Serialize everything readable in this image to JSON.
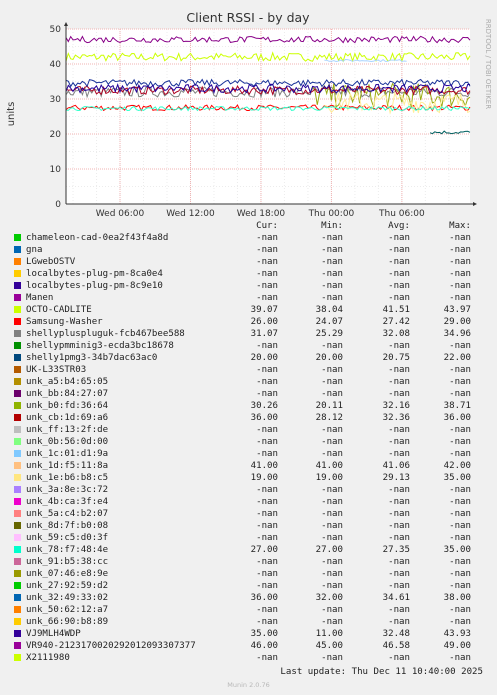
{
  "chart_data": {
    "type": "line",
    "title": "Client RSSI - by day",
    "ylabel": "units",
    "ylim": [
      0,
      50
    ],
    "yticks": [
      "0",
      "10",
      "20",
      "30",
      "40",
      "50"
    ],
    "xticks": [
      "Wed 06:00",
      "Wed 12:00",
      "Wed 18:00",
      "Thu 00:00",
      "Thu 06:00"
    ],
    "xrange_hours": [
      0,
      34.4
    ],
    "xtick_hours": [
      4.6,
      10.6,
      16.6,
      22.6,
      28.6
    ],
    "grid": true,
    "side_label": "RRDTOOL / TOBI OETIKER",
    "series": [
      {
        "name": "OCTO-CADLITE",
        "color": "#ccff00",
        "base": 42,
        "noise": 1.2,
        "start": 0,
        "end": 34.4
      },
      {
        "name": "Samsung-Washer",
        "color": "#ff0000",
        "base": 27.5,
        "noise": 0.8,
        "start": 0,
        "end": 34.4
      },
      {
        "name": "shellypluspluguk-fcb467bee588",
        "color": "#808080",
        "base": 32,
        "noise": 1.5,
        "start": 0,
        "end": 34.4
      },
      {
        "name": "shelly1pmg3-34b7dac63ac0",
        "color": "#006060",
        "base": 20.5,
        "noise": 0.5,
        "start": 31,
        "end": 34.4
      },
      {
        "name": "unk_b0:fd:36:64",
        "color": "#99aa11",
        "base": 31,
        "noise": 3.5,
        "start": 21,
        "end": 34.4
      },
      {
        "name": "unk_cb:1d:69:a6",
        "color": "#b00020",
        "base": 32.5,
        "noise": 1.2,
        "start": 0,
        "end": 34.4
      },
      {
        "name": "unk_1d:f5:11:8a",
        "color": "#aad4ff",
        "base": 41,
        "noise": 0.3,
        "start": 22,
        "end": 29
      },
      {
        "name": "unk_1e:b6:b8:c5",
        "color": "#ffee99",
        "base": 29,
        "noise": 3,
        "start": 22,
        "end": 34.4
      },
      {
        "name": "unk_78:f7:48:4e",
        "color": "#33ffcc",
        "base": 27.3,
        "noise": 0.6,
        "start": 0,
        "end": 34.4
      },
      {
        "name": "unk_32:49:33:02",
        "color": "#1a3399",
        "base": 34.6,
        "noise": 1,
        "start": 0,
        "end": 34.4
      },
      {
        "name": "VJ9MLH4WDP",
        "color": "#220099",
        "base": 33,
        "noise": 1.2,
        "start": 0,
        "end": 34.4
      },
      {
        "name": "VR940-2123170020292012093307377",
        "color": "#880088",
        "base": 47,
        "noise": 0.9,
        "start": 0,
        "end": 34.4
      }
    ]
  },
  "legend": {
    "headers": {
      "cur": "Cur:",
      "min": "Min:",
      "avg": "Avg:",
      "max": "Max:"
    },
    "rows": [
      {
        "name": "chameleon-cad-0ea2f43f4a8d",
        "color": "#00cc00",
        "cur": "-nan",
        "min": "-nan",
        "avg": "-nan",
        "max": "-nan"
      },
      {
        "name": "gna",
        "color": "#0066b3",
        "cur": "-nan",
        "min": "-nan",
        "avg": "-nan",
        "max": "-nan"
      },
      {
        "name": "LGwebOSTV",
        "color": "#ff8000",
        "cur": "-nan",
        "min": "-nan",
        "avg": "-nan",
        "max": "-nan"
      },
      {
        "name": "localbytes-plug-pm-8ca0e4",
        "color": "#ffcc00",
        "cur": "-nan",
        "min": "-nan",
        "avg": "-nan",
        "max": "-nan"
      },
      {
        "name": "localbytes-plug-pm-8c9e10",
        "color": "#330099",
        "cur": "-nan",
        "min": "-nan",
        "avg": "-nan",
        "max": "-nan"
      },
      {
        "name": "Manen",
        "color": "#990099",
        "cur": "-nan",
        "min": "-nan",
        "avg": "-nan",
        "max": "-nan"
      },
      {
        "name": "OCTO-CADLITE",
        "color": "#ccff00",
        "cur": "39.07",
        "min": "38.04",
        "avg": "41.51",
        "max": "43.97"
      },
      {
        "name": "Samsung-Washer",
        "color": "#ff0000",
        "cur": "26.00",
        "min": "24.07",
        "avg": "27.42",
        "max": "29.00"
      },
      {
        "name": "shellypluspluguk-fcb467bee588",
        "color": "#808080",
        "cur": "31.07",
        "min": "25.29",
        "avg": "32.08",
        "max": "34.96"
      },
      {
        "name": "shellypmminig3-ecda3bc18678",
        "color": "#008f00",
        "cur": "-nan",
        "min": "-nan",
        "avg": "-nan",
        "max": "-nan"
      },
      {
        "name": "shelly1pmg3-34b7dac63ac0",
        "color": "#00487d",
        "cur": "20.00",
        "min": "20.00",
        "avg": "20.75",
        "max": "22.00"
      },
      {
        "name": "UK-L33STR03",
        "color": "#b35a00",
        "cur": "-nan",
        "min": "-nan",
        "avg": "-nan",
        "max": "-nan"
      },
      {
        "name": "unk_a5:b4:65:05",
        "color": "#b38f00",
        "cur": "-nan",
        "min": "-nan",
        "avg": "-nan",
        "max": "-nan"
      },
      {
        "name": "unk_bb:84:27:07",
        "color": "#6b006b",
        "cur": "-nan",
        "min": "-nan",
        "avg": "-nan",
        "max": "-nan"
      },
      {
        "name": "unk_b0:fd:36:64",
        "color": "#8fb300",
        "cur": "30.26",
        "min": "20.11",
        "avg": "32.16",
        "max": "38.71"
      },
      {
        "name": "unk_cb:1d:69:a6",
        "color": "#b30000",
        "cur": "36.00",
        "min": "28.12",
        "avg": "32.36",
        "max": "36.00"
      },
      {
        "name": "unk_ff:13:2f:de",
        "color": "#bebebe",
        "cur": "-nan",
        "min": "-nan",
        "avg": "-nan",
        "max": "-nan"
      },
      {
        "name": "unk_0b:56:0d:00",
        "color": "#80ff80",
        "cur": "-nan",
        "min": "-nan",
        "avg": "-nan",
        "max": "-nan"
      },
      {
        "name": "unk_1c:01:d1:9a",
        "color": "#80c9ff",
        "cur": "-nan",
        "min": "-nan",
        "avg": "-nan",
        "max": "-nan"
      },
      {
        "name": "unk_1d:f5:11:8a",
        "color": "#ffc080",
        "cur": "41.00",
        "min": "41.00",
        "avg": "41.06",
        "max": "42.00"
      },
      {
        "name": "unk_1e:b6:b8:c5",
        "color": "#ffe680",
        "cur": "19.00",
        "min": "19.00",
        "avg": "29.13",
        "max": "35.00"
      },
      {
        "name": "unk_3a:8e:3c:72",
        "color": "#aa80ff",
        "cur": "-nan",
        "min": "-nan",
        "avg": "-nan",
        "max": "-nan"
      },
      {
        "name": "unk_4b:ca:3f:e4",
        "color": "#ee00cc",
        "cur": "-nan",
        "min": "-nan",
        "avg": "-nan",
        "max": "-nan"
      },
      {
        "name": "unk_5a:c4:b2:07",
        "color": "#ff8080",
        "cur": "-nan",
        "min": "-nan",
        "avg": "-nan",
        "max": "-nan"
      },
      {
        "name": "unk_8d:7f:b0:08",
        "color": "#666600",
        "cur": "-nan",
        "min": "-nan",
        "avg": "-nan",
        "max": "-nan"
      },
      {
        "name": "unk_59:c5:d0:3f",
        "color": "#ffbfff",
        "cur": "-nan",
        "min": "-nan",
        "avg": "-nan",
        "max": "-nan"
      },
      {
        "name": "unk_78:f7:48:4e",
        "color": "#00ffcc",
        "cur": "27.00",
        "min": "27.00",
        "avg": "27.35",
        "max": "35.00"
      },
      {
        "name": "unk_91:b5:38:cc",
        "color": "#cc6699",
        "cur": "-nan",
        "min": "-nan",
        "avg": "-nan",
        "max": "-nan"
      },
      {
        "name": "unk_07:46:e8:9e",
        "color": "#999900",
        "cur": "-nan",
        "min": "-nan",
        "avg": "-nan",
        "max": "-nan"
      },
      {
        "name": "unk_27:92:59:d2",
        "color": "#00cc00",
        "cur": "-nan",
        "min": "-nan",
        "avg": "-nan",
        "max": "-nan"
      },
      {
        "name": "unk_32:49:33:02",
        "color": "#0066b3",
        "cur": "36.00",
        "min": "32.00",
        "avg": "34.61",
        "max": "38.00"
      },
      {
        "name": "unk_50:62:12:a7",
        "color": "#ff8000",
        "cur": "-nan",
        "min": "-nan",
        "avg": "-nan",
        "max": "-nan"
      },
      {
        "name": "unk_66:90:b8:89",
        "color": "#ffcc00",
        "cur": "-nan",
        "min": "-nan",
        "avg": "-nan",
        "max": "-nan"
      },
      {
        "name": "VJ9MLH4WDP",
        "color": "#330099",
        "cur": "35.00",
        "min": "11.00",
        "avg": "32.48",
        "max": "43.93"
      },
      {
        "name": "VR940-2123170020292012093307377",
        "color": "#990099",
        "cur": "46.00",
        "min": "45.00",
        "avg": "46.58",
        "max": "49.00"
      },
      {
        "name": "X2111980",
        "color": "#ccff00",
        "cur": "-nan",
        "min": "-nan",
        "avg": "-nan",
        "max": "-nan"
      }
    ]
  },
  "last_update": "Last update: Thu Dec 11 10:40:00 2025",
  "footer": "Munin 2.0.76"
}
